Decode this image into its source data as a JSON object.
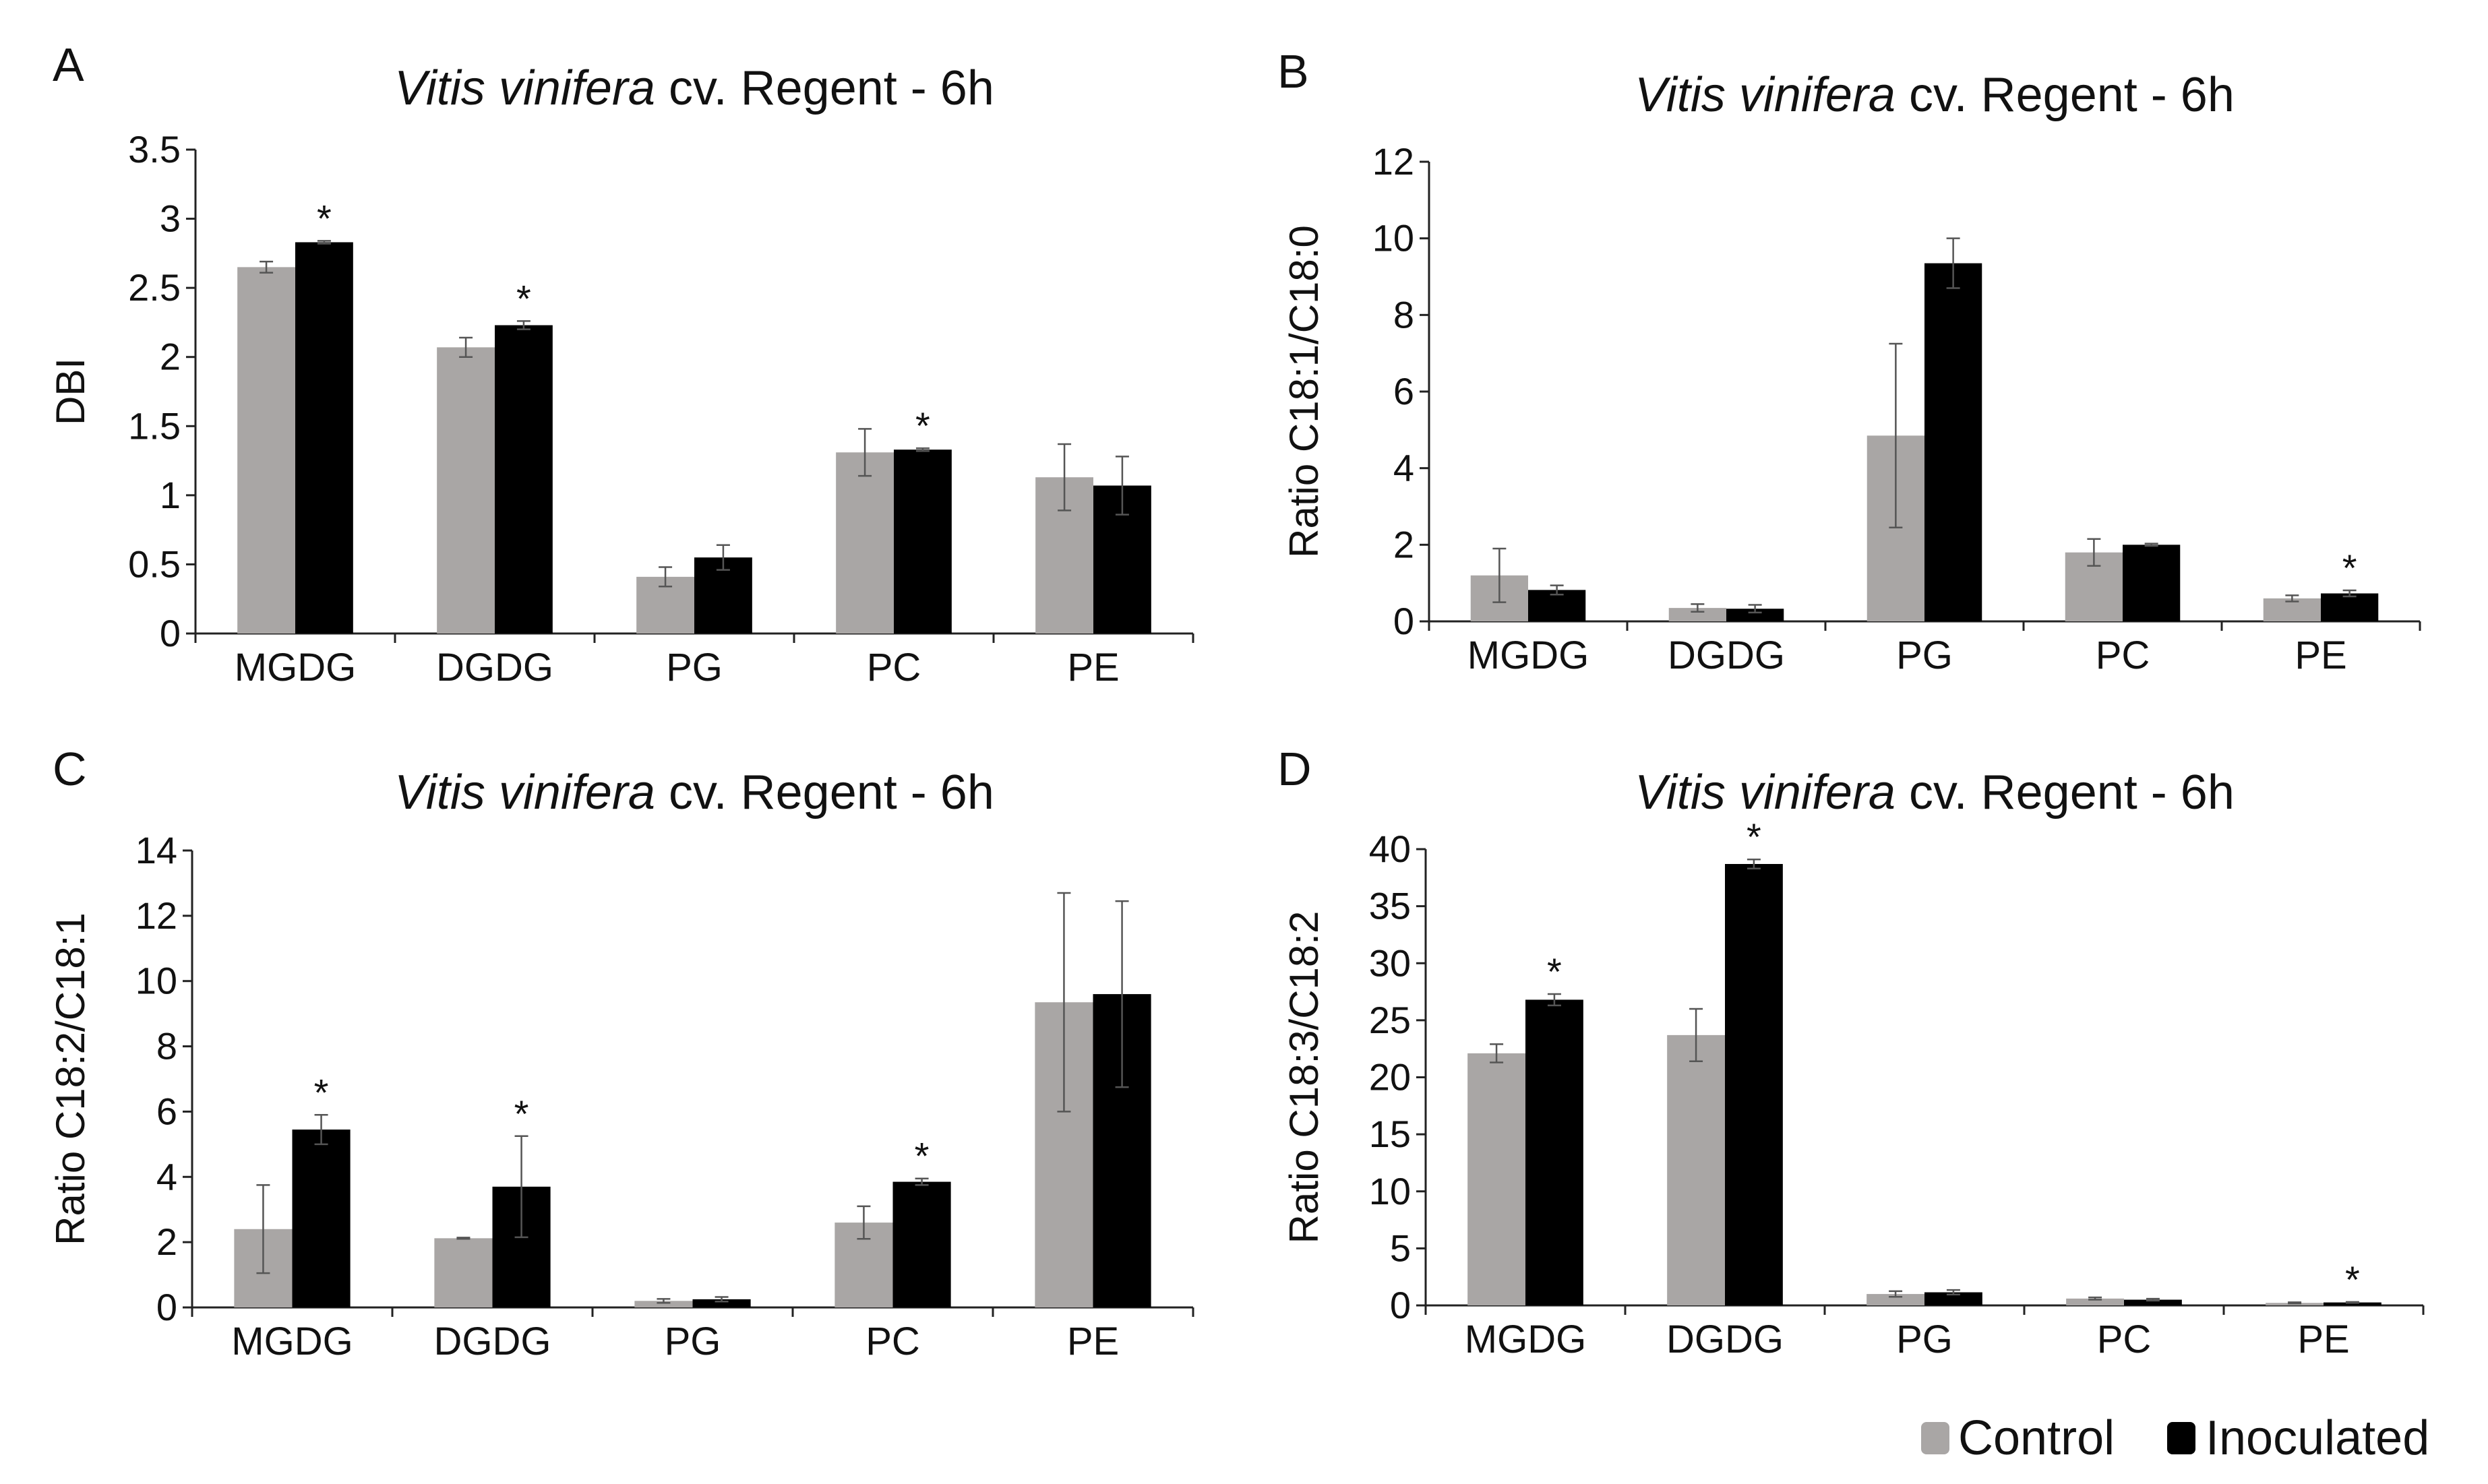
{
  "colors": {
    "control": "#a9a6a5",
    "inoculated": "#000000",
    "axis": "#222222"
  },
  "legend": {
    "control": "Control",
    "inoculated": "Inoculated"
  },
  "chart_data": [
    {
      "type": "bar",
      "panel": "A",
      "title_italic": "Vitis vinifera",
      "title_rest": " cv. Regent - 6h",
      "xlabel": "",
      "ylabel": "DBI",
      "ylim": [
        0,
        3.5
      ],
      "yticks": [
        "0",
        "0.5",
        "1",
        "1.5",
        "2",
        "2.5",
        "3",
        "3.5"
      ],
      "categories": [
        "MGDG",
        "DGDG",
        "PG",
        "PC",
        "PE"
      ],
      "series": [
        {
          "name": "Control",
          "values": [
            2.65,
            2.07,
            0.41,
            1.31,
            1.13
          ],
          "errors": [
            0.04,
            0.07,
            0.07,
            0.17,
            0.24
          ]
        },
        {
          "name": "Inoculated",
          "values": [
            2.83,
            2.23,
            0.55,
            1.33,
            1.07
          ],
          "errors": [
            0.01,
            0.03,
            0.09,
            0.01,
            0.21
          ]
        }
      ],
      "significant": [
        {
          "series": 1,
          "category": 0,
          "label": "*"
        },
        {
          "series": 1,
          "category": 1,
          "label": "*"
        },
        {
          "series": 1,
          "category": 3,
          "label": "*"
        }
      ]
    },
    {
      "type": "bar",
      "panel": "B",
      "title_italic": "Vitis vinifera",
      "title_rest": " cv. Regent - 6h",
      "xlabel": "",
      "ylabel": "Ratio C18:1/C18:0",
      "ylim": [
        0,
        12
      ],
      "yticks": [
        "0",
        "2",
        "4",
        "6",
        "8",
        "10",
        "12"
      ],
      "categories": [
        "MGDG",
        "DGDG",
        "PG",
        "PC",
        "PE"
      ],
      "series": [
        {
          "name": "Control",
          "values": [
            1.2,
            0.35,
            4.85,
            1.8,
            0.6
          ],
          "errors": [
            0.7,
            0.1,
            2.4,
            0.35,
            0.08
          ]
        },
        {
          "name": "Inoculated",
          "values": [
            0.82,
            0.33,
            9.35,
            2.0,
            0.73
          ],
          "errors": [
            0.12,
            0.1,
            0.65,
            0.03,
            0.08
          ]
        }
      ],
      "significant": [
        {
          "series": 1,
          "category": 4,
          "label": "*"
        }
      ]
    },
    {
      "type": "bar",
      "panel": "C",
      "title_italic": "Vitis vinifera",
      "title_rest": " cv. Regent - 6h",
      "xlabel": "",
      "ylabel": "Ratio C18:2/C18:1",
      "ylim": [
        0,
        14
      ],
      "yticks": [
        "0",
        "2",
        "4",
        "6",
        "8",
        "10",
        "12",
        "14"
      ],
      "categories": [
        "MGDG",
        "DGDG",
        "PG",
        "PC",
        "PE"
      ],
      "series": [
        {
          "name": "Control",
          "values": [
            2.4,
            2.12,
            0.2,
            2.6,
            9.35
          ],
          "errors": [
            1.35,
            0.02,
            0.06,
            0.5,
            3.35
          ]
        },
        {
          "name": "Inoculated",
          "values": [
            5.45,
            3.7,
            0.25,
            3.85,
            9.6
          ],
          "errors": [
            0.45,
            1.55,
            0.07,
            0.1,
            2.85
          ]
        }
      ],
      "significant": [
        {
          "series": 1,
          "category": 0,
          "label": "*"
        },
        {
          "series": 1,
          "category": 1,
          "label": "*"
        },
        {
          "series": 1,
          "category": 3,
          "label": "*"
        }
      ]
    },
    {
      "type": "bar",
      "panel": "D",
      "title_italic": "Vitis vinifera",
      "title_rest": " cv. Regent - 6h",
      "xlabel": "",
      "ylabel": "Ratio C18:3/C18:2",
      "ylim": [
        0,
        40
      ],
      "yticks": [
        "0",
        "5",
        "10",
        "15",
        "20",
        "25",
        "30",
        "35",
        "40"
      ],
      "categories": [
        "MGDG",
        "DGDG",
        "PG",
        "PC",
        "PE"
      ],
      "series": [
        {
          "name": "Control",
          "values": [
            22.1,
            23.7,
            1.0,
            0.6,
            0.22
          ],
          "errors": [
            0.8,
            2.3,
            0.25,
            0.1,
            0.05
          ]
        },
        {
          "name": "Inoculated",
          "values": [
            26.8,
            38.7,
            1.15,
            0.5,
            0.26
          ],
          "errors": [
            0.5,
            0.4,
            0.2,
            0.08,
            0.04
          ]
        }
      ],
      "significant": [
        {
          "series": 1,
          "category": 0,
          "label": "*"
        },
        {
          "series": 1,
          "category": 1,
          "label": "*"
        },
        {
          "series": 1,
          "category": 4,
          "label": "*"
        }
      ]
    }
  ]
}
